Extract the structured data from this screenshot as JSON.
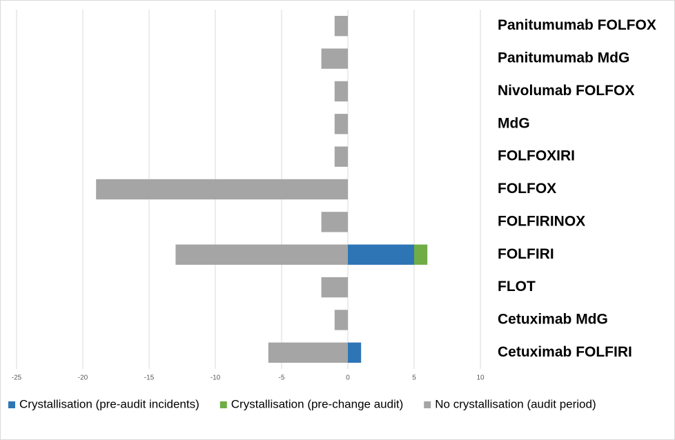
{
  "chart_data": {
    "type": "bar",
    "orientation": "horizontal",
    "stacked": true,
    "categories": [
      "Panitumumab FOLFOX",
      "Panitumumab MdG",
      "Nivolumab FOLFOX",
      "MdG",
      "FOLFOXIRI",
      "FOLFOX",
      "FOLFIRINOX",
      "FOLFIRI",
      "FLOT",
      "Cetuximab MdG",
      "Cetuximab FOLFIRI"
    ],
    "series": [
      {
        "name": "Crystallisation (pre-audit incidents)",
        "color": "#2e75b6",
        "values": [
          0,
          0,
          0,
          0,
          0,
          0,
          0,
          5,
          0,
          0,
          1
        ]
      },
      {
        "name": "Crystallisation (pre-change audit)",
        "color": "#70ad47",
        "values": [
          0,
          0,
          0,
          0,
          0,
          0,
          0,
          1,
          0,
          0,
          0
        ]
      },
      {
        "name": "No crystallisation (audit period)",
        "color": "#a5a5a5",
        "values": [
          -1,
          -2,
          -1,
          -1,
          -1,
          -19,
          -2,
          -13,
          -2,
          -1,
          -6
        ]
      }
    ],
    "xlim": [
      -25,
      10
    ],
    "xticks": [
      -25,
      -20,
      -15,
      -10,
      -5,
      0,
      5,
      10
    ],
    "grid": true,
    "legend": "bottom"
  }
}
